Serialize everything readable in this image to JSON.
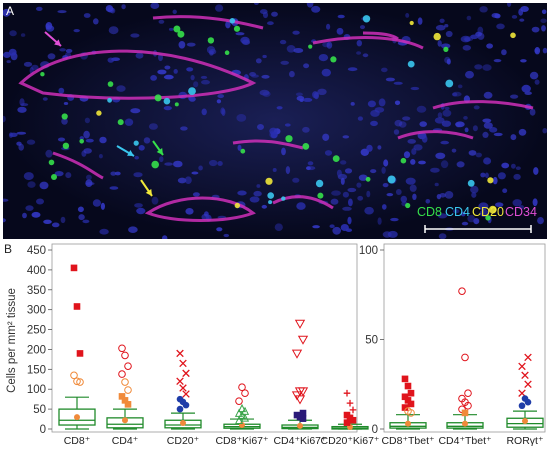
{
  "panel_a": {
    "letter": "A",
    "stain_labels": [
      {
        "text": "CD8",
        "color": "#35e04a"
      },
      {
        "text": "CD4",
        "color": "#3ac6ee"
      },
      {
        "text": "CD20",
        "color": "#f1e83a"
      },
      {
        "text": "CD34",
        "color": "#e04fd6"
      }
    ],
    "arrow_colors": [
      "#e04fd6",
      "#3ac6ee",
      "#35e04a",
      "#f1e83a"
    ]
  },
  "panel_b": {
    "letter": "B"
  },
  "chart_data": [
    {
      "type": "box",
      "ylabel": "Cells per mm² tissue",
      "ylim": [
        0,
        450
      ],
      "yticks": [
        0,
        50,
        100,
        150,
        200,
        250,
        300,
        350,
        400,
        450
      ],
      "categories": [
        "CD8⁺",
        "CD4⁺",
        "CD20⁺",
        "CD8⁺Ki67⁺",
        "CD4⁺Ki67⁺",
        "CD20⁺Ki67⁺"
      ],
      "boxes": [
        {
          "whisker_low": 0,
          "q1": 10,
          "median": 22,
          "mean": 30,
          "q3": 50,
          "whisker_high": 80
        },
        {
          "whisker_low": 0,
          "q1": 3,
          "median": 12,
          "mean": 22,
          "q3": 28,
          "whisker_high": 50
        },
        {
          "whisker_low": 0,
          "q1": 3,
          "median": 10,
          "mean": 15,
          "q3": 22,
          "whisker_high": 40
        },
        {
          "whisker_low": 0,
          "q1": 2,
          "median": 6,
          "mean": 10,
          "q3": 12,
          "whisker_high": 25
        },
        {
          "whisker_low": 0,
          "q1": 1,
          "median": 4,
          "mean": 8,
          "q3": 10,
          "whisker_high": 22
        },
        {
          "whisker_low": 0,
          "q1": 0,
          "median": 2,
          "mean": 5,
          "q3": 6,
          "whisker_high": 12
        }
      ],
      "outliers": [
        {
          "cat": 0,
          "y": 405,
          "shape": "square",
          "color": "#e0141c"
        },
        {
          "cat": 0,
          "y": 308,
          "shape": "square",
          "color": "#e0141c"
        },
        {
          "cat": 0,
          "y": 190,
          "shape": "square",
          "color": "#e0141c"
        },
        {
          "cat": 0,
          "y": 135,
          "shape": "circle-open",
          "color": "#f08a3a"
        },
        {
          "cat": 0,
          "y": 120,
          "shape": "circle-open",
          "color": "#f08a3a"
        },
        {
          "cat": 0,
          "y": 118,
          "shape": "circle-open",
          "color": "#f08a3a"
        },
        {
          "cat": 1,
          "y": 203,
          "shape": "circle-open",
          "color": "#e0141c"
        },
        {
          "cat": 1,
          "y": 185,
          "shape": "circle-open",
          "color": "#e0141c"
        },
        {
          "cat": 1,
          "y": 158,
          "shape": "circle-open",
          "color": "#e0141c"
        },
        {
          "cat": 1,
          "y": 138,
          "shape": "circle-open",
          "color": "#e0141c"
        },
        {
          "cat": 1,
          "y": 118,
          "shape": "circle-open",
          "color": "#f08a3a"
        },
        {
          "cat": 1,
          "y": 98,
          "shape": "circle-open",
          "color": "#f08a3a"
        },
        {
          "cat": 1,
          "y": 82,
          "shape": "square",
          "color": "#f08a3a"
        },
        {
          "cat": 1,
          "y": 72,
          "shape": "square",
          "color": "#f08a3a"
        },
        {
          "cat": 1,
          "y": 62,
          "shape": "square",
          "color": "#f08a3a"
        },
        {
          "cat": 2,
          "y": 190,
          "shape": "cross",
          "color": "#e0141c"
        },
        {
          "cat": 2,
          "y": 165,
          "shape": "cross",
          "color": "#e0141c"
        },
        {
          "cat": 2,
          "y": 140,
          "shape": "cross",
          "color": "#e0141c"
        },
        {
          "cat": 2,
          "y": 120,
          "shape": "cross",
          "color": "#e0141c"
        },
        {
          "cat": 2,
          "y": 103,
          "shape": "cross",
          "color": "#e0141c"
        },
        {
          "cat": 2,
          "y": 88,
          "shape": "cross",
          "color": "#e0141c"
        },
        {
          "cat": 2,
          "y": 75,
          "shape": "circle",
          "color": "#1f3ca8"
        },
        {
          "cat": 2,
          "y": 68,
          "shape": "circle",
          "color": "#1f3ca8"
        },
        {
          "cat": 2,
          "y": 60,
          "shape": "circle",
          "color": "#1f3ca8"
        },
        {
          "cat": 2,
          "y": 50,
          "shape": "circle",
          "color": "#1f3ca8"
        },
        {
          "cat": 3,
          "y": 105,
          "shape": "circle-open",
          "color": "#e0141c"
        },
        {
          "cat": 3,
          "y": 90,
          "shape": "circle-open",
          "color": "#e0141c"
        },
        {
          "cat": 3,
          "y": 70,
          "shape": "circle-open",
          "color": "#e0141c"
        },
        {
          "cat": 3,
          "y": 52,
          "shape": "triangle-open",
          "color": "#3aa44a"
        },
        {
          "cat": 3,
          "y": 45,
          "shape": "triangle-open",
          "color": "#3aa44a"
        },
        {
          "cat": 3,
          "y": 40,
          "shape": "triangle-open",
          "color": "#3aa44a"
        },
        {
          "cat": 3,
          "y": 35,
          "shape": "triangle-open",
          "color": "#3aa44a"
        },
        {
          "cat": 3,
          "y": 28,
          "shape": "triangle-open",
          "color": "#3aa44a"
        },
        {
          "cat": 3,
          "y": 22,
          "shape": "triangle-open",
          "color": "#3aa44a"
        },
        {
          "cat": 4,
          "y": 265,
          "shape": "triangle-down-open",
          "color": "#e0141c"
        },
        {
          "cat": 4,
          "y": 225,
          "shape": "triangle-down-open",
          "color": "#e0141c"
        },
        {
          "cat": 4,
          "y": 190,
          "shape": "triangle-down-open",
          "color": "#e0141c"
        },
        {
          "cat": 4,
          "y": 95,
          "shape": "triangle-down-open",
          "color": "#e0141c"
        },
        {
          "cat": 4,
          "y": 95,
          "shape": "triangle-down-open",
          "color": "#e0141c"
        },
        {
          "cat": 4,
          "y": 85,
          "shape": "triangle-down-open",
          "color": "#e0141c"
        },
        {
          "cat": 4,
          "y": 75,
          "shape": "triangle-down-open",
          "color": "#e0141c"
        },
        {
          "cat": 4,
          "y": 40,
          "shape": "square",
          "color": "#2a1a78"
        },
        {
          "cat": 4,
          "y": 35,
          "shape": "square",
          "color": "#2a1a78"
        },
        {
          "cat": 4,
          "y": 30,
          "shape": "square",
          "color": "#2a1a78"
        },
        {
          "cat": 4,
          "y": 26,
          "shape": "square",
          "color": "#2a1a78"
        },
        {
          "cat": 5,
          "y": 90,
          "shape": "plus",
          "color": "#e0141c"
        },
        {
          "cat": 5,
          "y": 65,
          "shape": "plus",
          "color": "#e0141c"
        },
        {
          "cat": 5,
          "y": 48,
          "shape": "plus",
          "color": "#e0141c"
        },
        {
          "cat": 5,
          "y": 35,
          "shape": "square",
          "color": "#e0141c"
        },
        {
          "cat": 5,
          "y": 28,
          "shape": "square",
          "color": "#e0141c"
        },
        {
          "cat": 5,
          "y": 22,
          "shape": "square",
          "color": "#e0141c"
        },
        {
          "cat": 5,
          "y": 16,
          "shape": "square",
          "color": "#e0141c"
        }
      ]
    },
    {
      "type": "box",
      "ylabel": "",
      "ylim": [
        0,
        100
      ],
      "yticks": [
        0,
        50,
        100
      ],
      "categories": [
        "CD8⁺Tbet⁺",
        "CD4⁺Tbet⁺",
        "RORγt⁺"
      ],
      "boxes": [
        {
          "whisker_low": 0,
          "q1": 0.5,
          "median": 1.5,
          "mean": 3,
          "q3": 3.5,
          "whisker_high": 8
        },
        {
          "whisker_low": 0,
          "q1": 0.5,
          "median": 1.5,
          "mean": 3,
          "q3": 3.5,
          "whisker_high": 8
        },
        {
          "whisker_low": 0,
          "q1": 1,
          "median": 3,
          "mean": 4.5,
          "q3": 6,
          "whisker_high": 10
        }
      ],
      "outliers": [
        {
          "cat": 0,
          "y": 28,
          "shape": "square",
          "color": "#e0141c"
        },
        {
          "cat": 0,
          "y": 24,
          "shape": "square",
          "color": "#e0141c"
        },
        {
          "cat": 0,
          "y": 20,
          "shape": "square",
          "color": "#e0141c"
        },
        {
          "cat": 0,
          "y": 18,
          "shape": "square",
          "color": "#e0141c"
        },
        {
          "cat": 0,
          "y": 16,
          "shape": "square",
          "color": "#e0141c"
        },
        {
          "cat": 0,
          "y": 14,
          "shape": "square",
          "color": "#e0141c"
        },
        {
          "cat": 0,
          "y": 12,
          "shape": "square",
          "color": "#e0141c"
        },
        {
          "cat": 0,
          "y": 10,
          "shape": "circle-open",
          "color": "#f08a3a"
        },
        {
          "cat": 0,
          "y": 9,
          "shape": "circle-open",
          "color": "#f08a3a"
        },
        {
          "cat": 1,
          "y": 77,
          "shape": "circle-open",
          "color": "#e0141c"
        },
        {
          "cat": 1,
          "y": 40,
          "shape": "circle-open",
          "color": "#e0141c"
        },
        {
          "cat": 1,
          "y": 20,
          "shape": "circle-open",
          "color": "#e0141c"
        },
        {
          "cat": 1,
          "y": 17,
          "shape": "circle-open",
          "color": "#e0141c"
        },
        {
          "cat": 1,
          "y": 15,
          "shape": "circle-open",
          "color": "#e0141c"
        },
        {
          "cat": 1,
          "y": 13,
          "shape": "circle-open",
          "color": "#e0141c"
        },
        {
          "cat": 1,
          "y": 11,
          "shape": "circle-open",
          "color": "#e0141c"
        },
        {
          "cat": 1,
          "y": 9,
          "shape": "square",
          "color": "#f08a3a"
        },
        {
          "cat": 2,
          "y": 40,
          "shape": "cross",
          "color": "#e0141c"
        },
        {
          "cat": 2,
          "y": 35,
          "shape": "cross",
          "color": "#e0141c"
        },
        {
          "cat": 2,
          "y": 30,
          "shape": "cross",
          "color": "#e0141c"
        },
        {
          "cat": 2,
          "y": 25,
          "shape": "cross",
          "color": "#e0141c"
        },
        {
          "cat": 2,
          "y": 20,
          "shape": "cross",
          "color": "#e0141c"
        },
        {
          "cat": 2,
          "y": 17,
          "shape": "circle",
          "color": "#1f3ca8"
        },
        {
          "cat": 2,
          "y": 15,
          "shape": "circle",
          "color": "#1f3ca8"
        },
        {
          "cat": 2,
          "y": 13,
          "shape": "circle",
          "color": "#1f3ca8"
        }
      ]
    }
  ]
}
